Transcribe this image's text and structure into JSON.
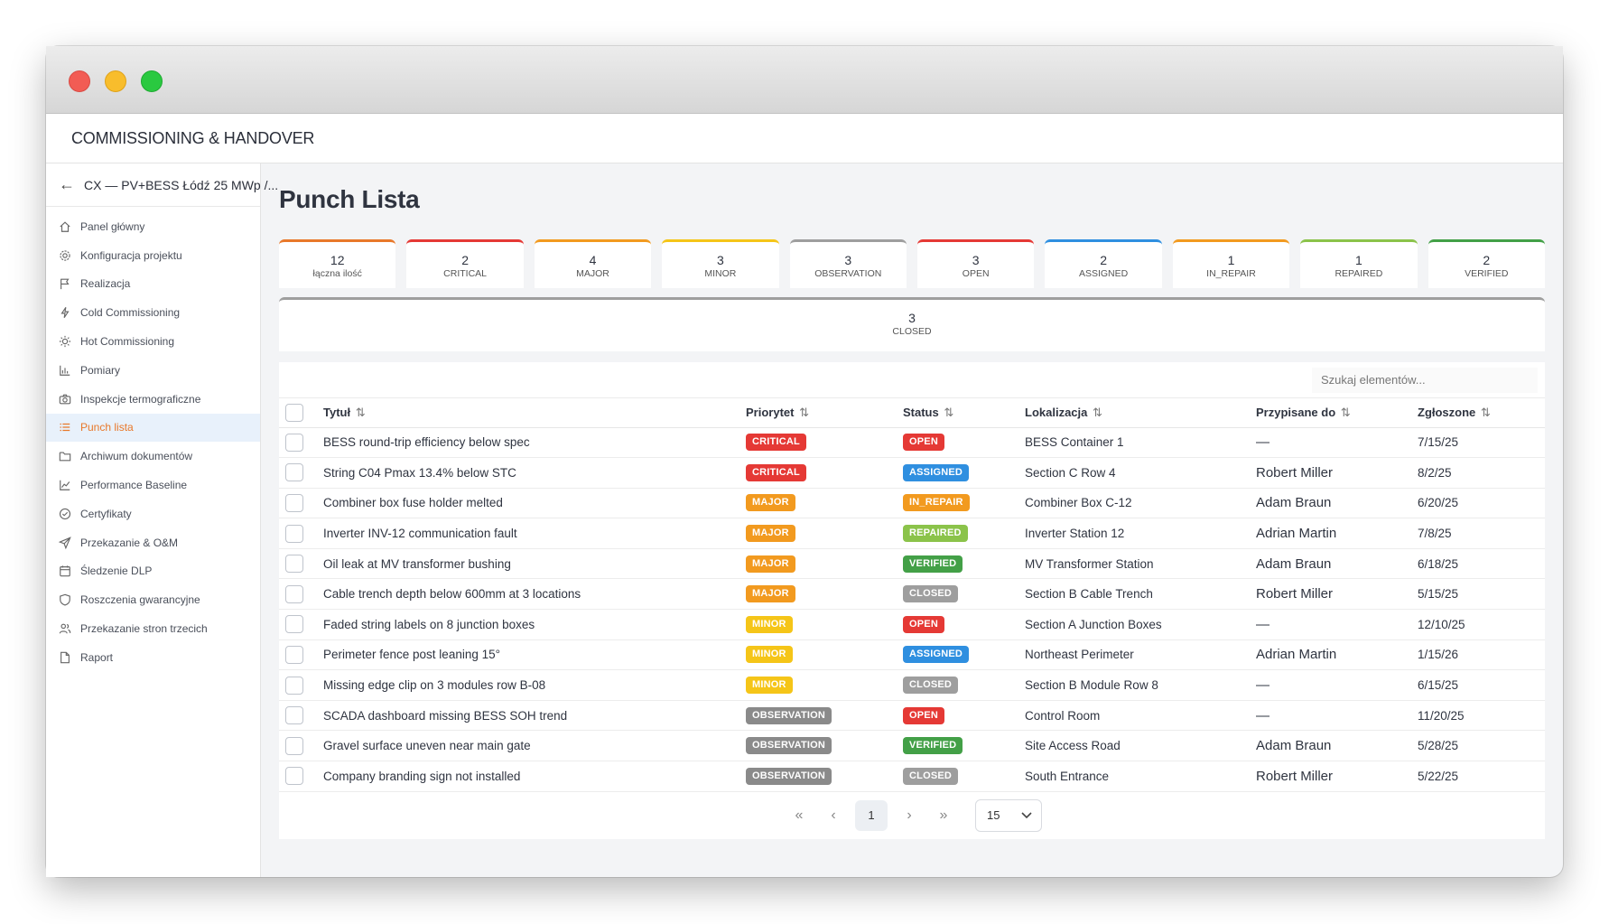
{
  "app": {
    "title": "COMMISSIONING & HANDOVER"
  },
  "sidebar": {
    "project": "CX — PV+BESS Łódź 25 MWp /...",
    "items": [
      {
        "label": "Panel główny",
        "icon": "home-icon"
      },
      {
        "label": "Konfiguracja projektu",
        "icon": "gear-icon"
      },
      {
        "label": "Realizacja",
        "icon": "flag-icon"
      },
      {
        "label": "Cold Commissioning",
        "icon": "bolt-icon"
      },
      {
        "label": "Hot Commissioning",
        "icon": "sun-icon"
      },
      {
        "label": "Pomiary",
        "icon": "bar-chart-icon"
      },
      {
        "label": "Inspekcje termograficzne",
        "icon": "camera-icon"
      },
      {
        "label": "Punch lista",
        "icon": "list-icon",
        "active": true
      },
      {
        "label": "Archiwum dokumentów",
        "icon": "folder-icon"
      },
      {
        "label": "Performance Baseline",
        "icon": "line-chart-icon"
      },
      {
        "label": "Certyfikaty",
        "icon": "check-circle-icon"
      },
      {
        "label": "Przekazanie & O&M",
        "icon": "send-icon"
      },
      {
        "label": "Śledzenie DLP",
        "icon": "calendar-icon"
      },
      {
        "label": "Roszczenia gwarancyjne",
        "icon": "shield-icon"
      },
      {
        "label": "Przekazanie stron trzecich",
        "icon": "users-icon"
      },
      {
        "label": "Raport",
        "icon": "file-icon"
      }
    ]
  },
  "page": {
    "title": "Punch Lista"
  },
  "stats": [
    {
      "value": "12",
      "label": "łączna ilość",
      "color": "#e8782a"
    },
    {
      "value": "2",
      "label": "CRITICAL",
      "color": "#e53935"
    },
    {
      "value": "4",
      "label": "MAJOR",
      "color": "#f29a1f"
    },
    {
      "value": "3",
      "label": "MINOR",
      "color": "#f5c518"
    },
    {
      "value": "3",
      "label": "OBSERVATION",
      "color": "#9e9e9e"
    },
    {
      "value": "3",
      "label": "OPEN",
      "color": "#e53935"
    },
    {
      "value": "2",
      "label": "ASSIGNED",
      "color": "#2f8fe0"
    },
    {
      "value": "1",
      "label": "IN_REPAIR",
      "color": "#f29a1f"
    },
    {
      "value": "1",
      "label": "REPAIRED",
      "color": "#8bc34a"
    },
    {
      "value": "2",
      "label": "VERIFIED",
      "color": "#43a047"
    },
    {
      "value": "3",
      "label": "CLOSED",
      "color": "#9e9e9e"
    }
  ],
  "search": {
    "placeholder": "Szukaj elementów..."
  },
  "table": {
    "headers": {
      "title": "Tytuł",
      "priority": "Priorytet",
      "status": "Status",
      "location": "Lokalizacja",
      "assigned": "Przypisane do",
      "reported": "Zgłoszone"
    },
    "sort_icon": "⇅",
    "rows": [
      {
        "title": "BESS round-trip efficiency below spec",
        "priority": "CRITICAL",
        "status": "OPEN",
        "location": "BESS Container 1",
        "assigned": "—",
        "reported": "7/15/25"
      },
      {
        "title": "String C04 Pmax 13.4% below STC",
        "priority": "CRITICAL",
        "status": "ASSIGNED",
        "location": "Section C Row 4",
        "assigned": "Robert Miller",
        "reported": "8/2/25"
      },
      {
        "title": "Combiner box fuse holder melted",
        "priority": "MAJOR",
        "status": "IN_REPAIR",
        "location": "Combiner Box C-12",
        "assigned": "Adam Braun",
        "reported": "6/20/25"
      },
      {
        "title": "Inverter INV-12 communication fault",
        "priority": "MAJOR",
        "status": "REPAIRED",
        "location": "Inverter Station 12",
        "assigned": "Adrian Martin",
        "reported": "7/8/25"
      },
      {
        "title": "Oil leak at MV transformer bushing",
        "priority": "MAJOR",
        "status": "VERIFIED",
        "location": "MV Transformer Station",
        "assigned": "Adam Braun",
        "reported": "6/18/25"
      },
      {
        "title": "Cable trench depth below 600mm at 3 locations",
        "priority": "MAJOR",
        "status": "CLOSED",
        "location": "Section B Cable Trench",
        "assigned": "Robert Miller",
        "reported": "5/15/25"
      },
      {
        "title": "Faded string labels on 8 junction boxes",
        "priority": "MINOR",
        "status": "OPEN",
        "location": "Section A Junction Boxes",
        "assigned": "—",
        "reported": "12/10/25"
      },
      {
        "title": "Perimeter fence post leaning 15°",
        "priority": "MINOR",
        "status": "ASSIGNED",
        "location": "Northeast Perimeter",
        "assigned": "Adrian Martin",
        "reported": "1/15/26"
      },
      {
        "title": "Missing edge clip on 3 modules row B-08",
        "priority": "MINOR",
        "status": "CLOSED",
        "location": "Section B Module Row 8",
        "assigned": "—",
        "reported": "6/15/25"
      },
      {
        "title": "SCADA dashboard missing BESS SOH trend",
        "priority": "OBSERVATION",
        "status": "OPEN",
        "location": "Control Room",
        "assigned": "—",
        "reported": "11/20/25"
      },
      {
        "title": "Gravel surface uneven near main gate",
        "priority": "OBSERVATION",
        "status": "VERIFIED",
        "location": "Site Access Road",
        "assigned": "Adam Braun",
        "reported": "5/28/25"
      },
      {
        "title": "Company branding sign not installed",
        "priority": "OBSERVATION",
        "status": "CLOSED",
        "location": "South Entrance",
        "assigned": "Robert Miller",
        "reported": "5/22/25"
      }
    ]
  },
  "badge_colors": {
    "CRITICAL": "#e53935",
    "MAJOR": "#f29a1f",
    "MINOR": "#f5c518",
    "OBSERVATION": "#8a8a8a",
    "OPEN": "#e53935",
    "ASSIGNED": "#2f8fe0",
    "IN_REPAIR": "#f29a1f",
    "REPAIRED": "#8bc34a",
    "VERIFIED": "#43a047",
    "CLOSED": "#9e9e9e"
  },
  "pagination": {
    "first": "«",
    "prev": "‹",
    "current": "1",
    "next": "›",
    "last": "»",
    "page_size": "15"
  }
}
